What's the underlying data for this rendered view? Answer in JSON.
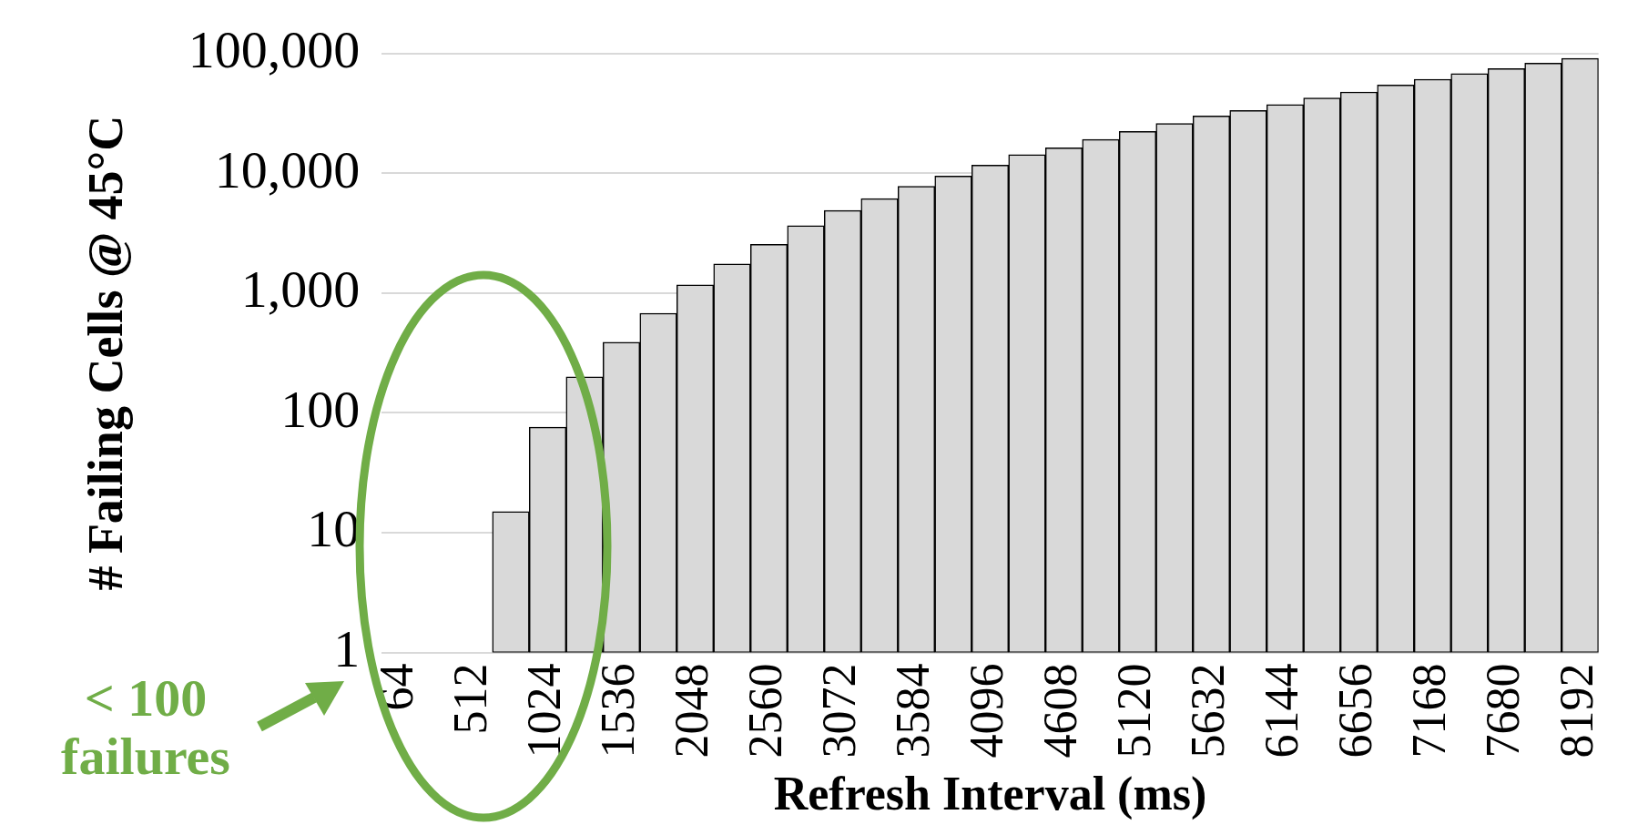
{
  "chart_data": {
    "type": "bar",
    "xlabel": "Refresh Interval (ms)",
    "ylabel": "# Failing Cells @ 45°C",
    "categories": [
      "64",
      null,
      "512",
      null,
      "1024",
      null,
      "1536",
      null,
      "2048",
      null,
      "2560",
      null,
      "3072",
      null,
      "3584",
      null,
      "4096",
      null,
      "4608",
      null,
      "5120",
      null,
      "5632",
      null,
      "6144",
      null,
      "6656",
      null,
      "7168",
      null,
      "7680",
      null,
      "8192"
    ],
    "values": [
      null,
      null,
      null,
      15,
      76,
      200,
      390,
      680,
      1170,
      1750,
      2550,
      3650,
      4900,
      6150,
      7800,
      9500,
      11700,
      14300,
      16300,
      19200,
      22400,
      26100,
      30100,
      33500,
      37500,
      42600,
      47800,
      54600,
      61000,
      68000,
      74800,
      83300,
      91000
    ],
    "color": "#d9d9d9",
    "log": "y",
    "ylim": [
      1,
      100000
    ],
    "yticks": [
      1,
      10,
      100,
      {
        "value": 1000,
        "label": "1,000"
      },
      {
        "value": 10000,
        "label": "10,000"
      },
      {
        "value": 100000,
        "label": "100,000"
      }
    ],
    "grid": "y",
    "annotations": [
      "< 100 failures"
    ]
  }
}
